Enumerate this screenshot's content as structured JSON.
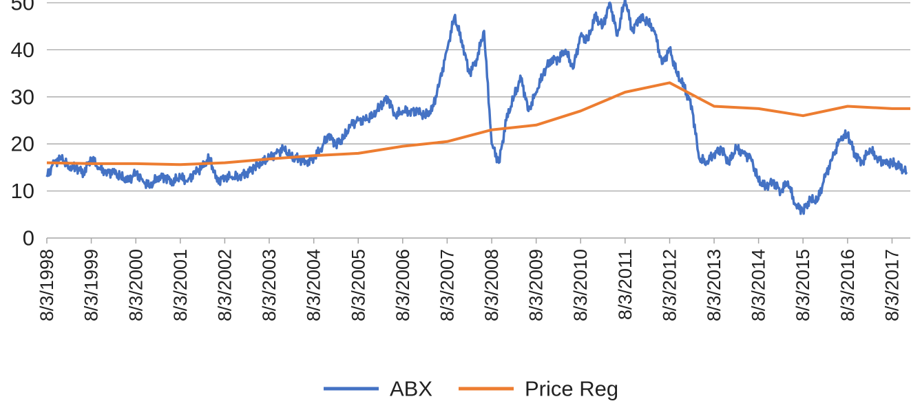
{
  "chart_data": {
    "type": "line",
    "title": "",
    "xlabel": "",
    "ylabel": "",
    "ylim": [
      0,
      50
    ],
    "yticks": [
      "0",
      "10",
      "20",
      "30",
      "40",
      "50"
    ],
    "xtick_labels": [
      "8/3/1998",
      "8/3/1999",
      "8/3/2000",
      "8/3/2001",
      "8/3/2002",
      "8/3/2003",
      "8/3/2004",
      "8/3/2005",
      "8/3/2006",
      "8/3/2007",
      "8/3/2008",
      "8/3/2009",
      "8/3/2010",
      "8/3/2011",
      "8/3/2012",
      "8/3/2013",
      "8/3/2014",
      "8/3/2015",
      "8/3/2016",
      "8/3/2017"
    ],
    "xlim": [
      "8/3/1998",
      "12/31/2017"
    ],
    "grid": true,
    "legend_position": "bottom",
    "series": [
      {
        "name": "ABX",
        "color": "#4472c4",
        "x": [
          "8/3/1998",
          "10/1/1998",
          "12/1/1998",
          "2/1/1999",
          "4/1/1999",
          "6/1/1999",
          "8/3/1999",
          "10/1/1999",
          "12/1/1999",
          "2/1/2000",
          "4/1/2000",
          "6/1/2000",
          "8/3/2000",
          "10/1/2000",
          "12/1/2000",
          "2/1/2001",
          "4/1/2001",
          "6/1/2001",
          "8/3/2001",
          "10/1/2001",
          "12/1/2001",
          "2/1/2002",
          "4/1/2002",
          "6/1/2002",
          "8/3/2002",
          "10/1/2002",
          "12/1/2002",
          "2/1/2003",
          "4/1/2003",
          "6/1/2003",
          "8/3/2003",
          "10/1/2003",
          "12/1/2003",
          "2/1/2004",
          "4/1/2004",
          "6/1/2004",
          "8/3/2004",
          "10/1/2004",
          "12/1/2004",
          "2/1/2005",
          "4/1/2005",
          "6/1/2005",
          "8/3/2005",
          "10/1/2005",
          "12/1/2005",
          "2/1/2006",
          "4/1/2006",
          "6/1/2006",
          "8/3/2006",
          "10/1/2006",
          "12/1/2006",
          "2/1/2007",
          "4/1/2007",
          "6/1/2007",
          "8/3/2007",
          "10/1/2007",
          "12/1/2007",
          "2/1/2008",
          "4/1/2008",
          "6/1/2008",
          "8/3/2008",
          "10/1/2008",
          "12/1/2008",
          "2/1/2009",
          "4/1/2009",
          "6/1/2009",
          "8/3/2009",
          "10/1/2009",
          "12/1/2009",
          "2/1/2010",
          "4/1/2010",
          "6/1/2010",
          "8/3/2010",
          "10/1/2010",
          "12/1/2010",
          "2/1/2011",
          "4/1/2011",
          "6/1/2011",
          "8/3/2011",
          "10/1/2011",
          "12/1/2011",
          "2/1/2012",
          "4/1/2012",
          "6/1/2012",
          "8/3/2012",
          "10/1/2012",
          "12/1/2012",
          "2/1/2013",
          "4/1/2013",
          "6/1/2013",
          "8/3/2013",
          "10/1/2013",
          "12/1/2013",
          "2/1/2014",
          "4/1/2014",
          "6/1/2014",
          "8/3/2014",
          "10/1/2014",
          "12/1/2014",
          "2/1/2015",
          "4/1/2015",
          "6/1/2015",
          "8/3/2015",
          "10/1/2015",
          "12/1/2015",
          "2/1/2016",
          "4/1/2016",
          "6/1/2016",
          "8/3/2016",
          "10/1/2016",
          "12/1/2016",
          "2/1/2017",
          "4/1/2017",
          "6/1/2017",
          "8/3/2017",
          "10/1/2017",
          "12/1/2017"
        ],
        "values": [
          13,
          16,
          17,
          15,
          15,
          14,
          17,
          15,
          14,
          14,
          13,
          12,
          14,
          12,
          11,
          13,
          13,
          12,
          13,
          12,
          14,
          15,
          17,
          12,
          13,
          13,
          13,
          14,
          15,
          16,
          17,
          18,
          19,
          17,
          17,
          16,
          17,
          19,
          22,
          20,
          21,
          24,
          25,
          25,
          26,
          28,
          30,
          26,
          27,
          27,
          27,
          26,
          27,
          33,
          40,
          47,
          42,
          35,
          38,
          44,
          20,
          16,
          25,
          30,
          34,
          27,
          31,
          35,
          38,
          38,
          40,
          36,
          43,
          42,
          47,
          45,
          50,
          43,
          51,
          44,
          47,
          46,
          44,
          37,
          40,
          35,
          32,
          28,
          17,
          16,
          18,
          19,
          16,
          19,
          18,
          17,
          12,
          11,
          12,
          10,
          12,
          7,
          6,
          8,
          8,
          13,
          17,
          21,
          22,
          18,
          16,
          19,
          17,
          16,
          16,
          15,
          14
        ]
      },
      {
        "name": "Price Reg",
        "color": "#ed7d31",
        "x": [
          "8/3/1998",
          "8/3/1999",
          "8/3/2000",
          "8/3/2001",
          "8/3/2002",
          "8/3/2003",
          "8/3/2004",
          "8/3/2005",
          "8/3/2006",
          "8/3/2007",
          "8/3/2008",
          "8/3/2009",
          "8/3/2010",
          "8/3/2011",
          "8/3/2012",
          "8/3/2013",
          "8/3/2014",
          "8/3/2015",
          "8/3/2016",
          "8/3/2017",
          "12/31/2017"
        ],
        "values": [
          16,
          15.8,
          15.8,
          15.6,
          16,
          16.8,
          17.5,
          18,
          19.5,
          20.5,
          23,
          24,
          27,
          31,
          33,
          28,
          27.5,
          26,
          28,
          27.5,
          27.5
        ]
      }
    ]
  }
}
